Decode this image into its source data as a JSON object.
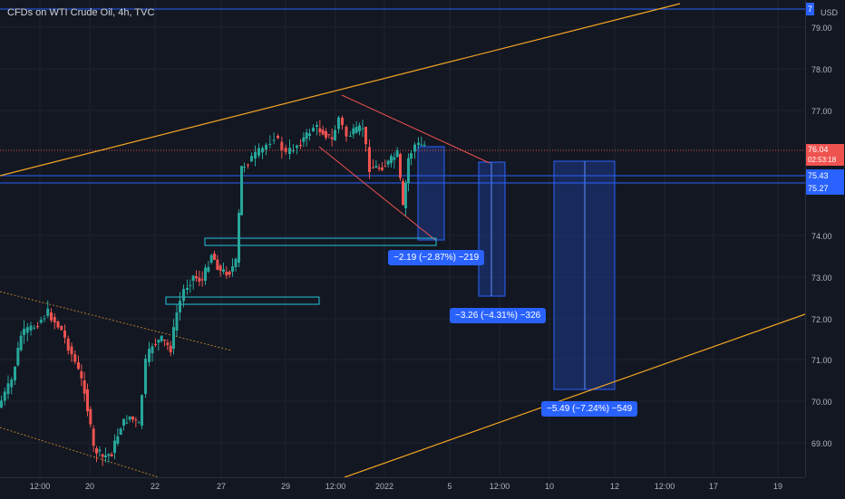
{
  "header": {
    "title": "CFDs on WTI Crude Oil, 4h, TVC"
  },
  "axis_right": {
    "currency": "USD",
    "ticks": [
      "79.00",
      "78.00",
      "77.00",
      "74.00",
      "73.00",
      "72.00",
      "71.00",
      "70.00",
      "69.00"
    ],
    "current_price": "76.04",
    "countdown": "02:53:18",
    "line_price_upper": "75.43",
    "line_price_lower": "75.27",
    "partial_top_label": "7"
  },
  "axis_bottom": {
    "ticks": [
      "12:00",
      "20",
      "22",
      "27",
      "29",
      "12:00",
      "2022",
      "5",
      "12:00",
      "10",
      "12",
      "12:00",
      "17",
      "19"
    ]
  },
  "measurements": [
    {
      "label": "−2.19 (−2.87%) −219"
    },
    {
      "label": "−3.26 (−4.31%) −326"
    },
    {
      "label": "−5.49 (−7.24%) −549"
    }
  ],
  "colors": {
    "background": "#131722",
    "up": "#26a69a",
    "down": "#ef5350",
    "trendline": "#f5a623",
    "blue_line": "#2962ff",
    "measure_fill": "#1e3a8a",
    "channel_red": "#ef5350"
  }
}
